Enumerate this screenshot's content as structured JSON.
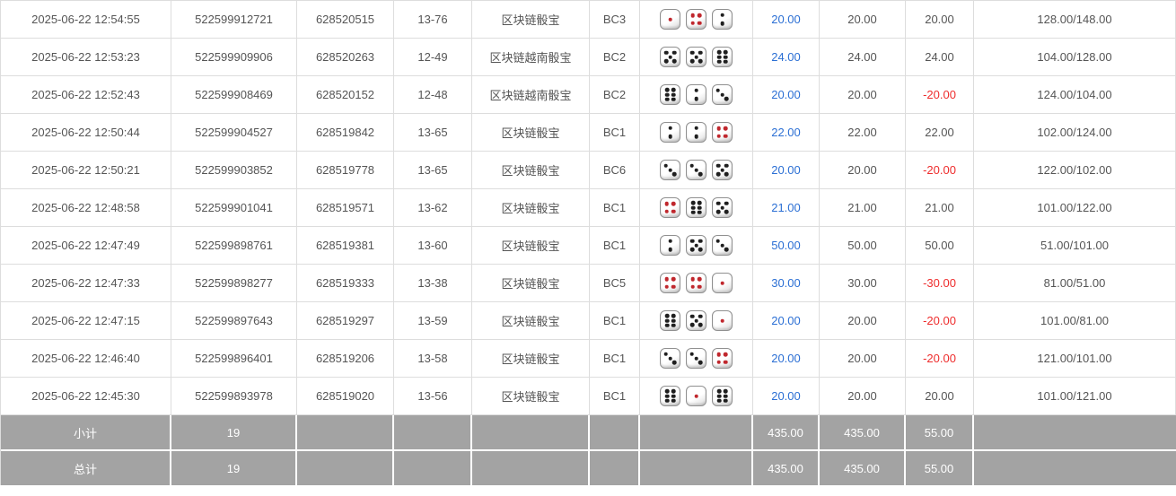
{
  "colors": {
    "bet_amount_blue": "#2b6fd4",
    "negative_red": "#ee2c2c",
    "footer_gray": "#a3a3a3",
    "text_gray": "#555555",
    "border_gray": "#dddddd",
    "pip_red": "#c0272d",
    "pip_black": "#1f1f1f"
  },
  "table": {
    "rows": [
      {
        "time": "2025-06-22 12:54:55",
        "order_id": "522599912721",
        "bet_id": "628520515",
        "round": "13-76",
        "game": "区块链骰宝",
        "table_code": "BC3",
        "dice": [
          1,
          4,
          2
        ],
        "bet_amount": "20.00",
        "valid_amount": "20.00",
        "win_loss": "20.00",
        "balance": "128.00/148.00"
      },
      {
        "time": "2025-06-22 12:53:23",
        "order_id": "522599909906",
        "bet_id": "628520263",
        "round": "12-49",
        "game": "区块链越南骰宝",
        "table_code": "BC2",
        "dice": [
          5,
          5,
          6
        ],
        "bet_amount": "24.00",
        "valid_amount": "24.00",
        "win_loss": "24.00",
        "balance": "104.00/128.00"
      },
      {
        "time": "2025-06-22 12:52:43",
        "order_id": "522599908469",
        "bet_id": "628520152",
        "round": "12-48",
        "game": "区块链越南骰宝",
        "table_code": "BC2",
        "dice": [
          6,
          2,
          3
        ],
        "bet_amount": "20.00",
        "valid_amount": "20.00",
        "win_loss": "-20.00",
        "balance": "124.00/104.00"
      },
      {
        "time": "2025-06-22 12:50:44",
        "order_id": "522599904527",
        "bet_id": "628519842",
        "round": "13-65",
        "game": "区块链骰宝",
        "table_code": "BC1",
        "dice": [
          2,
          2,
          4
        ],
        "bet_amount": "22.00",
        "valid_amount": "22.00",
        "win_loss": "22.00",
        "balance": "102.00/124.00"
      },
      {
        "time": "2025-06-22 12:50:21",
        "order_id": "522599903852",
        "bet_id": "628519778",
        "round": "13-65",
        "game": "区块链骰宝",
        "table_code": "BC6",
        "dice": [
          3,
          3,
          5
        ],
        "bet_amount": "20.00",
        "valid_amount": "20.00",
        "win_loss": "-20.00",
        "balance": "122.00/102.00"
      },
      {
        "time": "2025-06-22 12:48:58",
        "order_id": "522599901041",
        "bet_id": "628519571",
        "round": "13-62",
        "game": "区块链骰宝",
        "table_code": "BC1",
        "dice": [
          4,
          6,
          5
        ],
        "bet_amount": "21.00",
        "valid_amount": "21.00",
        "win_loss": "21.00",
        "balance": "101.00/122.00"
      },
      {
        "time": "2025-06-22 12:47:49",
        "order_id": "522599898761",
        "bet_id": "628519381",
        "round": "13-60",
        "game": "区块链骰宝",
        "table_code": "BC1",
        "dice": [
          2,
          5,
          3
        ],
        "bet_amount": "50.00",
        "valid_amount": "50.00",
        "win_loss": "50.00",
        "balance": "51.00/101.00"
      },
      {
        "time": "2025-06-22 12:47:33",
        "order_id": "522599898277",
        "bet_id": "628519333",
        "round": "13-38",
        "game": "区块链骰宝",
        "table_code": "BC5",
        "dice": [
          4,
          4,
          1
        ],
        "bet_amount": "30.00",
        "valid_amount": "30.00",
        "win_loss": "-30.00",
        "balance": "81.00/51.00"
      },
      {
        "time": "2025-06-22 12:47:15",
        "order_id": "522599897643",
        "bet_id": "628519297",
        "round": "13-59",
        "game": "区块链骰宝",
        "table_code": "BC1",
        "dice": [
          6,
          5,
          1
        ],
        "bet_amount": "20.00",
        "valid_amount": "20.00",
        "win_loss": "-20.00",
        "balance": "101.00/81.00"
      },
      {
        "time": "2025-06-22 12:46:40",
        "order_id": "522599896401",
        "bet_id": "628519206",
        "round": "13-58",
        "game": "区块链骰宝",
        "table_code": "BC1",
        "dice": [
          3,
          3,
          4
        ],
        "bet_amount": "20.00",
        "valid_amount": "20.00",
        "win_loss": "-20.00",
        "balance": "121.00/101.00"
      },
      {
        "time": "2025-06-22 12:45:30",
        "order_id": "522599893978",
        "bet_id": "628519020",
        "round": "13-56",
        "game": "区块链骰宝",
        "table_code": "BC1",
        "dice": [
          6,
          1,
          6
        ],
        "bet_amount": "20.00",
        "valid_amount": "20.00",
        "win_loss": "20.00",
        "balance": "101.00/121.00"
      }
    ],
    "footer_rows": [
      {
        "label": "小计",
        "count": "19",
        "bet_total": "435.00",
        "valid_total": "435.00",
        "winloss_total": "55.00"
      },
      {
        "label": "总计",
        "count": "19",
        "bet_total": "435.00",
        "valid_total": "435.00",
        "winloss_total": "55.00"
      }
    ]
  }
}
